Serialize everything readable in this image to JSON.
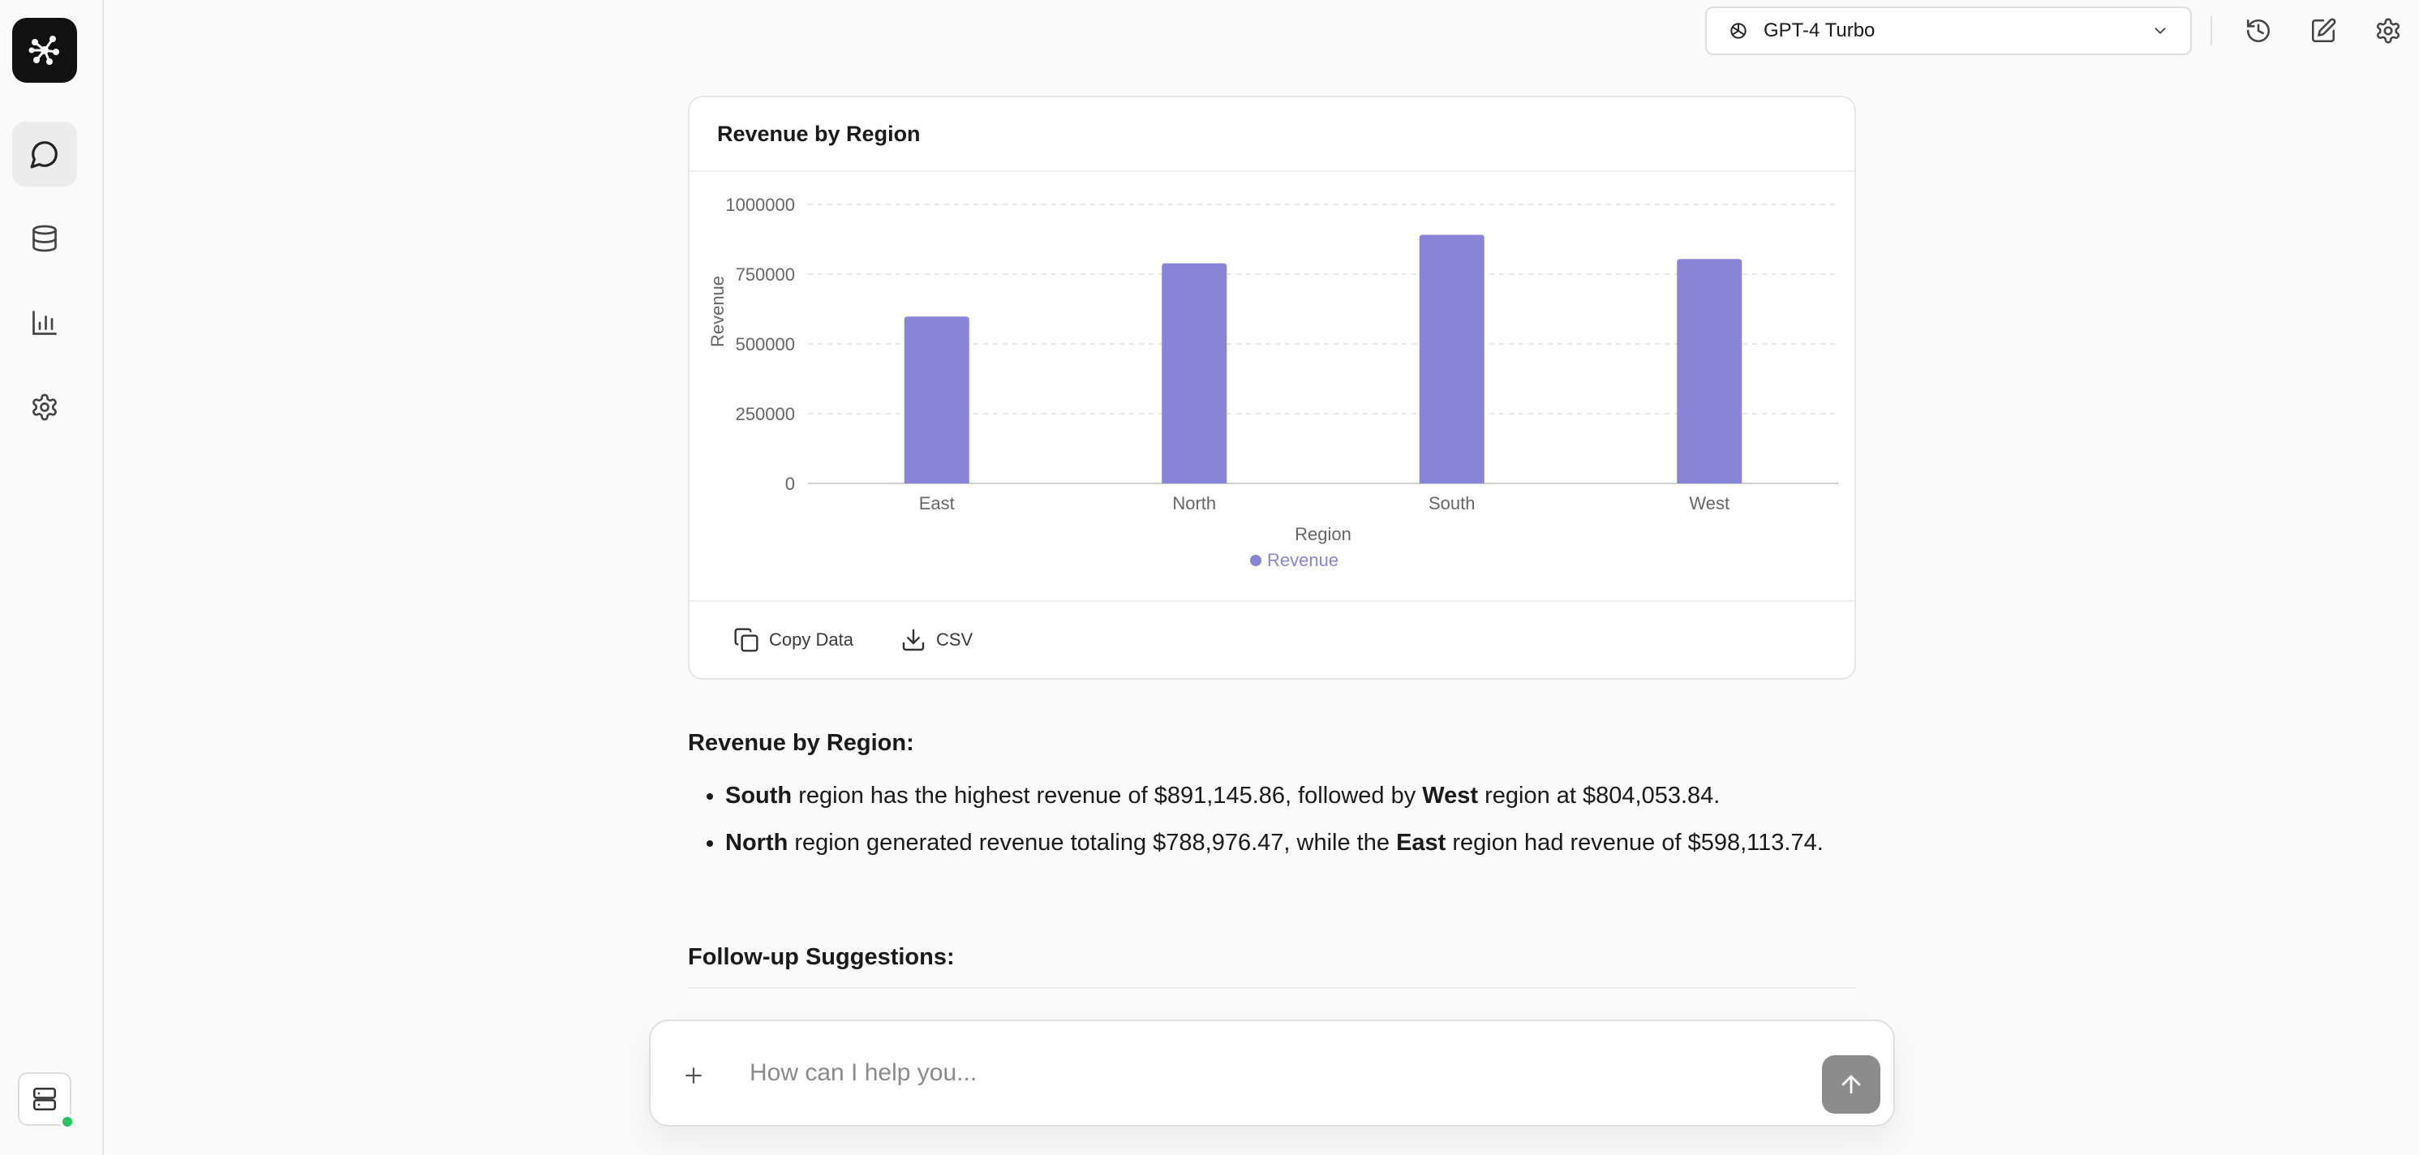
{
  "app": {
    "model_label": "GPT-4 Turbo"
  },
  "sidebar": {
    "items": [
      {
        "name": "chat",
        "icon": "chat-bubble-icon",
        "active": true
      },
      {
        "name": "database",
        "icon": "database-icon",
        "active": false
      },
      {
        "name": "analytics",
        "icon": "bar-chart-icon",
        "active": false
      },
      {
        "name": "settings",
        "icon": "gear-icon",
        "active": false
      }
    ],
    "status": {
      "icon": "server-icon",
      "online": true
    }
  },
  "toolbar": {
    "icons": [
      "history-icon",
      "edit-icon",
      "gear-icon"
    ]
  },
  "card": {
    "title": "Revenue by Region",
    "copy_label": "Copy Data",
    "csv_label": "CSV"
  },
  "chart_data": {
    "type": "bar",
    "title": "Revenue by Region",
    "categories": [
      "East",
      "North",
      "South",
      "West"
    ],
    "series": [
      {
        "name": "Revenue",
        "values": [
          598113.74,
          788976.47,
          891145.86,
          804053.84
        ],
        "color": "#8884d8"
      }
    ],
    "xlabel": "Region",
    "ylabel": "Revenue",
    "ylim": [
      0,
      1000000
    ],
    "yticks": [
      0,
      250000,
      500000,
      750000,
      1000000
    ],
    "ytick_labels": [
      "0",
      "250000",
      "500000",
      "750000",
      "1000000"
    ],
    "grid": true,
    "legend": "bottom-center"
  },
  "response": {
    "heading": "Revenue by Region:",
    "bullets": [
      {
        "b1": "South",
        "t1": " region has the highest revenue of $891,145.86, followed by ",
        "b2": "West",
        "t2": " region at $804,053.84."
      },
      {
        "b1": "North",
        "t1": " region generated revenue totaling $788,976.47, while the ",
        "b2": "East",
        "t2": " region had revenue of $598,113.74."
      }
    ],
    "followup_heading": "Follow-up Suggestions:"
  },
  "composer": {
    "placeholder": "How can I help you..."
  }
}
